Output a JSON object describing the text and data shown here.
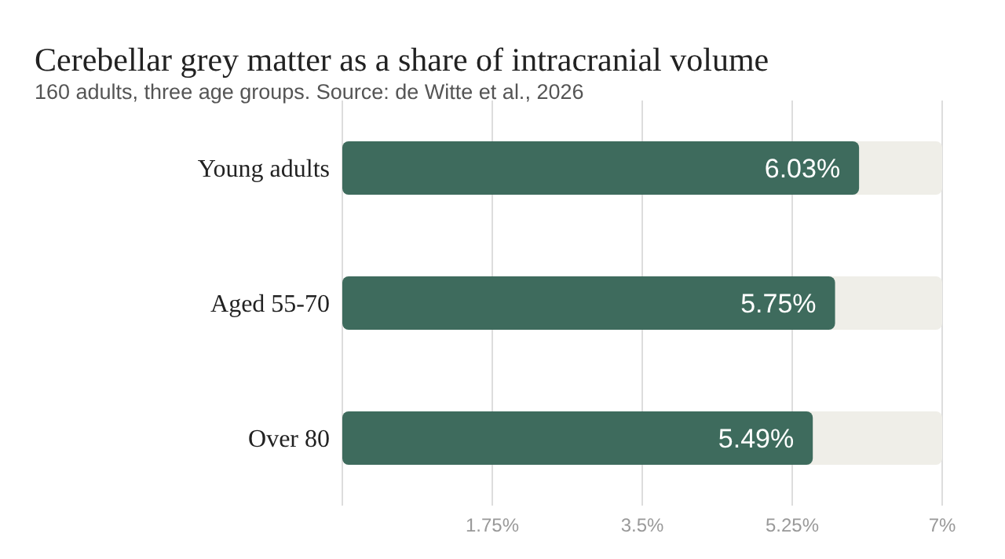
{
  "chart_data": {
    "type": "bar",
    "orientation": "horizontal",
    "title": "Cerebellar grey matter as a share of intracranial volume",
    "subtitle": "160 adults, three age groups. Source: de Witte et al., 2026",
    "categories": [
      "Young adults",
      "Aged 55-70",
      "Over 80"
    ],
    "values": [
      6.03,
      5.75,
      5.49
    ],
    "value_labels": [
      "6.03%",
      "5.75%",
      "5.49%"
    ],
    "color": "#3e6b5d",
    "xlim": [
      0,
      7
    ],
    "xticks": [
      {
        "value": 1.75,
        "label": "1.75%"
      },
      {
        "value": 3.5,
        "label": "3.5%"
      },
      {
        "value": 5.25,
        "label": "5.25%"
      },
      {
        "value": 7,
        "label": "7%"
      }
    ],
    "grid": "x",
    "legend": false
  }
}
